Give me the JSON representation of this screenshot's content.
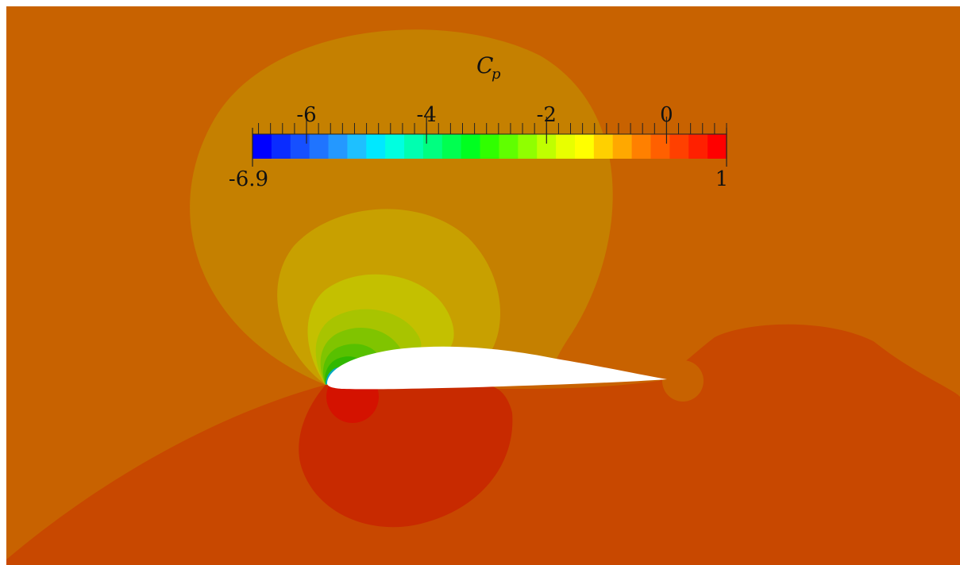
{
  "colorbar": {
    "title_main": "C",
    "title_sub": "p",
    "min": -6.9,
    "max": 1,
    "min_label": "-6.9",
    "max_label": "1",
    "major_ticks": [
      -6,
      -4,
      -2,
      0
    ],
    "major_tick_labels": [
      "-6",
      "-4",
      "-2",
      "0"
    ],
    "minor_tick_step": 0.2,
    "levels": 27,
    "colors": [
      "#0000ff",
      "#0a2cff",
      "#1650ff",
      "#1f74ff",
      "#2498ff",
      "#1ec0ff",
      "#00e8ff",
      "#00ffe0",
      "#00ffb0",
      "#00ff80",
      "#00ff50",
      "#00ff20",
      "#30ff00",
      "#60ff00",
      "#90ff00",
      "#c0ff00",
      "#e8ff00",
      "#ffff00",
      "#ffd000",
      "#ffa800",
      "#ff8000",
      "#ff6000",
      "#ff4000",
      "#ff2000",
      "#ff0000"
    ]
  },
  "field_colors": {
    "freestream": "#c86200",
    "near_field": "#c58000",
    "suction_1": "#c8a000",
    "suction_2": "#c4c000",
    "suction_3": "#a8c400",
    "suction_4": "#80c400",
    "suction_5": "#58c000",
    "suction_6": "#30b800",
    "suction_peak": "#00a8c0",
    "pressure_lower": "#c84800",
    "pressure_side": "#c82a00",
    "stagnation": "#d41200",
    "airfoil": "#ffffff"
  }
}
